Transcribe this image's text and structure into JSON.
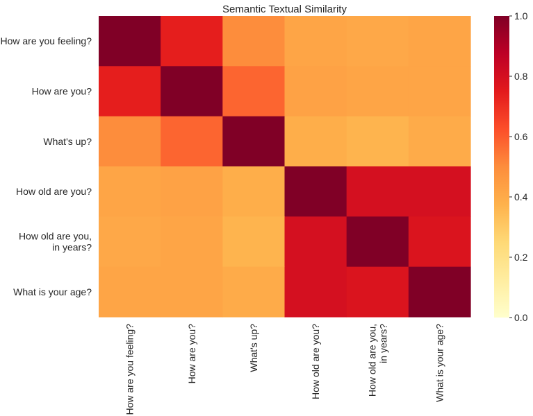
{
  "chart_data": {
    "type": "heatmap",
    "title": "Semantic Textual Similarity",
    "xlabel": "",
    "ylabel": "",
    "colormap": "YlOrRd",
    "vmin": 0.0,
    "vmax": 1.0,
    "row_labels": [
      [
        "How are you feeling?"
      ],
      [
        "How are you?"
      ],
      [
        "What's up?"
      ],
      [
        "How old are you?"
      ],
      [
        "How old are you,",
        "in years?"
      ],
      [
        "What is your age?"
      ]
    ],
    "col_labels": [
      [
        "How are you feeling?"
      ],
      [
        "How are you?"
      ],
      [
        "What's up?"
      ],
      [
        "How old are you?"
      ],
      [
        "How old are you,",
        "in years?"
      ],
      [
        "What is your age?"
      ]
    ],
    "values": [
      [
        1.0,
        0.74,
        0.5,
        0.42,
        0.41,
        0.42
      ],
      [
        0.74,
        1.0,
        0.58,
        0.43,
        0.42,
        0.42
      ],
      [
        0.5,
        0.58,
        1.0,
        0.39,
        0.37,
        0.4
      ],
      [
        0.42,
        0.43,
        0.39,
        1.0,
        0.8,
        0.8
      ],
      [
        0.41,
        0.42,
        0.37,
        0.8,
        1.0,
        0.78
      ],
      [
        0.42,
        0.42,
        0.4,
        0.8,
        0.78,
        1.0
      ]
    ],
    "colorbar": {
      "ticks": [
        0.0,
        0.2,
        0.4,
        0.6,
        0.8,
        1.0
      ],
      "tick_labels": [
        "0.0",
        "0.2",
        "0.4",
        "0.6",
        "0.8",
        "1.0"
      ],
      "placement": "right"
    },
    "grid": false
  }
}
